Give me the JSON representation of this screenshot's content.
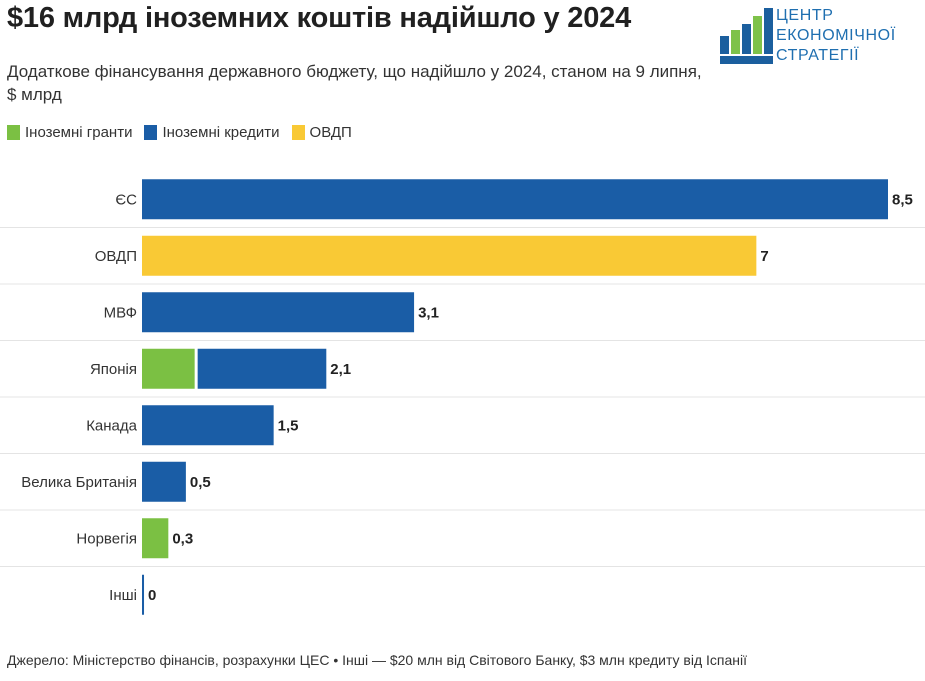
{
  "header": {
    "title": "$16 млрд іноземних коштів надійшло у 2024",
    "subtitle": "Додаткове фінансування державного бюджету, що надійшло у 2024, станом на 9 липня, $ млрд"
  },
  "logo": {
    "line1": "ЦЕНТР",
    "line2": "ЕКОНОМІЧНОЇ",
    "line3": "СТРАТЕГІЇ",
    "colors": {
      "text": "#1f6fb0",
      "bars_light": "#7ec24a",
      "bars_dark": "#1b5f9e"
    }
  },
  "legend": [
    {
      "label": "Іноземні гранти",
      "color": "#7bc043"
    },
    {
      "label": "Іноземні кредити",
      "color": "#1a5da6"
    },
    {
      "label": "ОВДП",
      "color": "#f9c935"
    }
  ],
  "chart_data": {
    "type": "bar",
    "orientation": "horizontal",
    "stacked": true,
    "categories": [
      "ЄС",
      "ОВДП",
      "МВФ",
      "Японія",
      "Канада",
      "Велика Британія",
      "Норвегія",
      "Інші"
    ],
    "series": [
      {
        "name": "Іноземні гранти",
        "color": "#7bc043",
        "values": [
          0,
          0,
          0,
          0.6,
          0,
          0,
          0.3,
          0
        ]
      },
      {
        "name": "Іноземні кредити",
        "color": "#1a5da6",
        "values": [
          8.5,
          0,
          3.1,
          1.5,
          1.5,
          0.5,
          0,
          0.023
        ]
      },
      {
        "name": "ОВДП",
        "color": "#f9c935",
        "values": [
          0,
          7,
          0,
          0,
          0,
          0,
          0,
          0
        ]
      }
    ],
    "totals_labels": [
      "8,5",
      "7",
      "3,1",
      "2,1",
      "1,5",
      "0,5",
      "0,3",
      "0"
    ],
    "xlim": [
      0,
      8.5
    ],
    "grid": "horizontal separators between rows",
    "legend_position": "top-left"
  },
  "footer": {
    "source": "Джерело: Міністерство фінансів, розрахунки ЦЕС • Інші — $20 млн від Світового Банку, $3 млн кредиту від Іспанії"
  }
}
